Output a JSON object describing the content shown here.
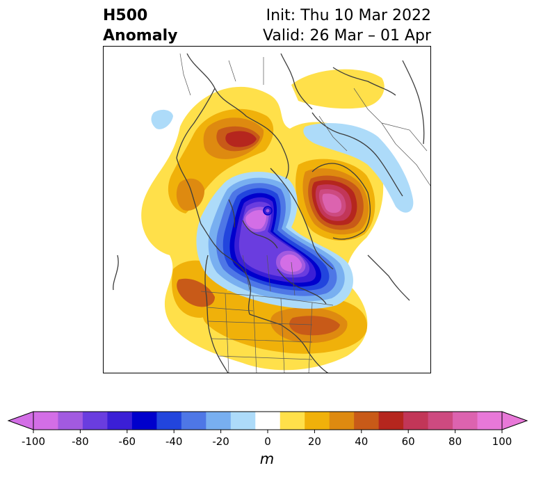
{
  "title": {
    "left_line1": "H500",
    "left_line2": "Anomaly",
    "right_line1": "Init: Thu 10 Mar 2022",
    "right_line2": "Valid: 26 Mar – 01 Apr"
  },
  "colorbar": {
    "units": "m",
    "min": -100,
    "max": 100,
    "extend": "both",
    "tick_labels": [
      "-100",
      "-80",
      "-60",
      "-40",
      "-20",
      "0",
      "20",
      "40",
      "60",
      "80",
      "100"
    ],
    "levels": [
      -100,
      -90,
      -80,
      -70,
      -60,
      -50,
      -40,
      -30,
      -20,
      -10,
      10,
      20,
      30,
      40,
      50,
      60,
      70,
      80,
      90,
      100
    ],
    "colors": [
      "#d36ee6",
      "#a25ae0",
      "#6a3ddf",
      "#3b1fd6",
      "#0000cc",
      "#2245dd",
      "#4e77e6",
      "#78aff0",
      "#addbf9",
      "#ffffff",
      "#ffe04a",
      "#f0b10a",
      "#de8a10",
      "#c85a18",
      "#b5261e",
      "#c23658",
      "#cd4a80",
      "#dc63af",
      "#e878d8"
    ],
    "under_color": "#d36ee6",
    "over_color": "#e878d8"
  },
  "map": {
    "projection": "north-polar-stereographic",
    "region": "North America / Arctic",
    "features": [
      "coastlines",
      "country-borders",
      "state-borders"
    ]
  }
}
